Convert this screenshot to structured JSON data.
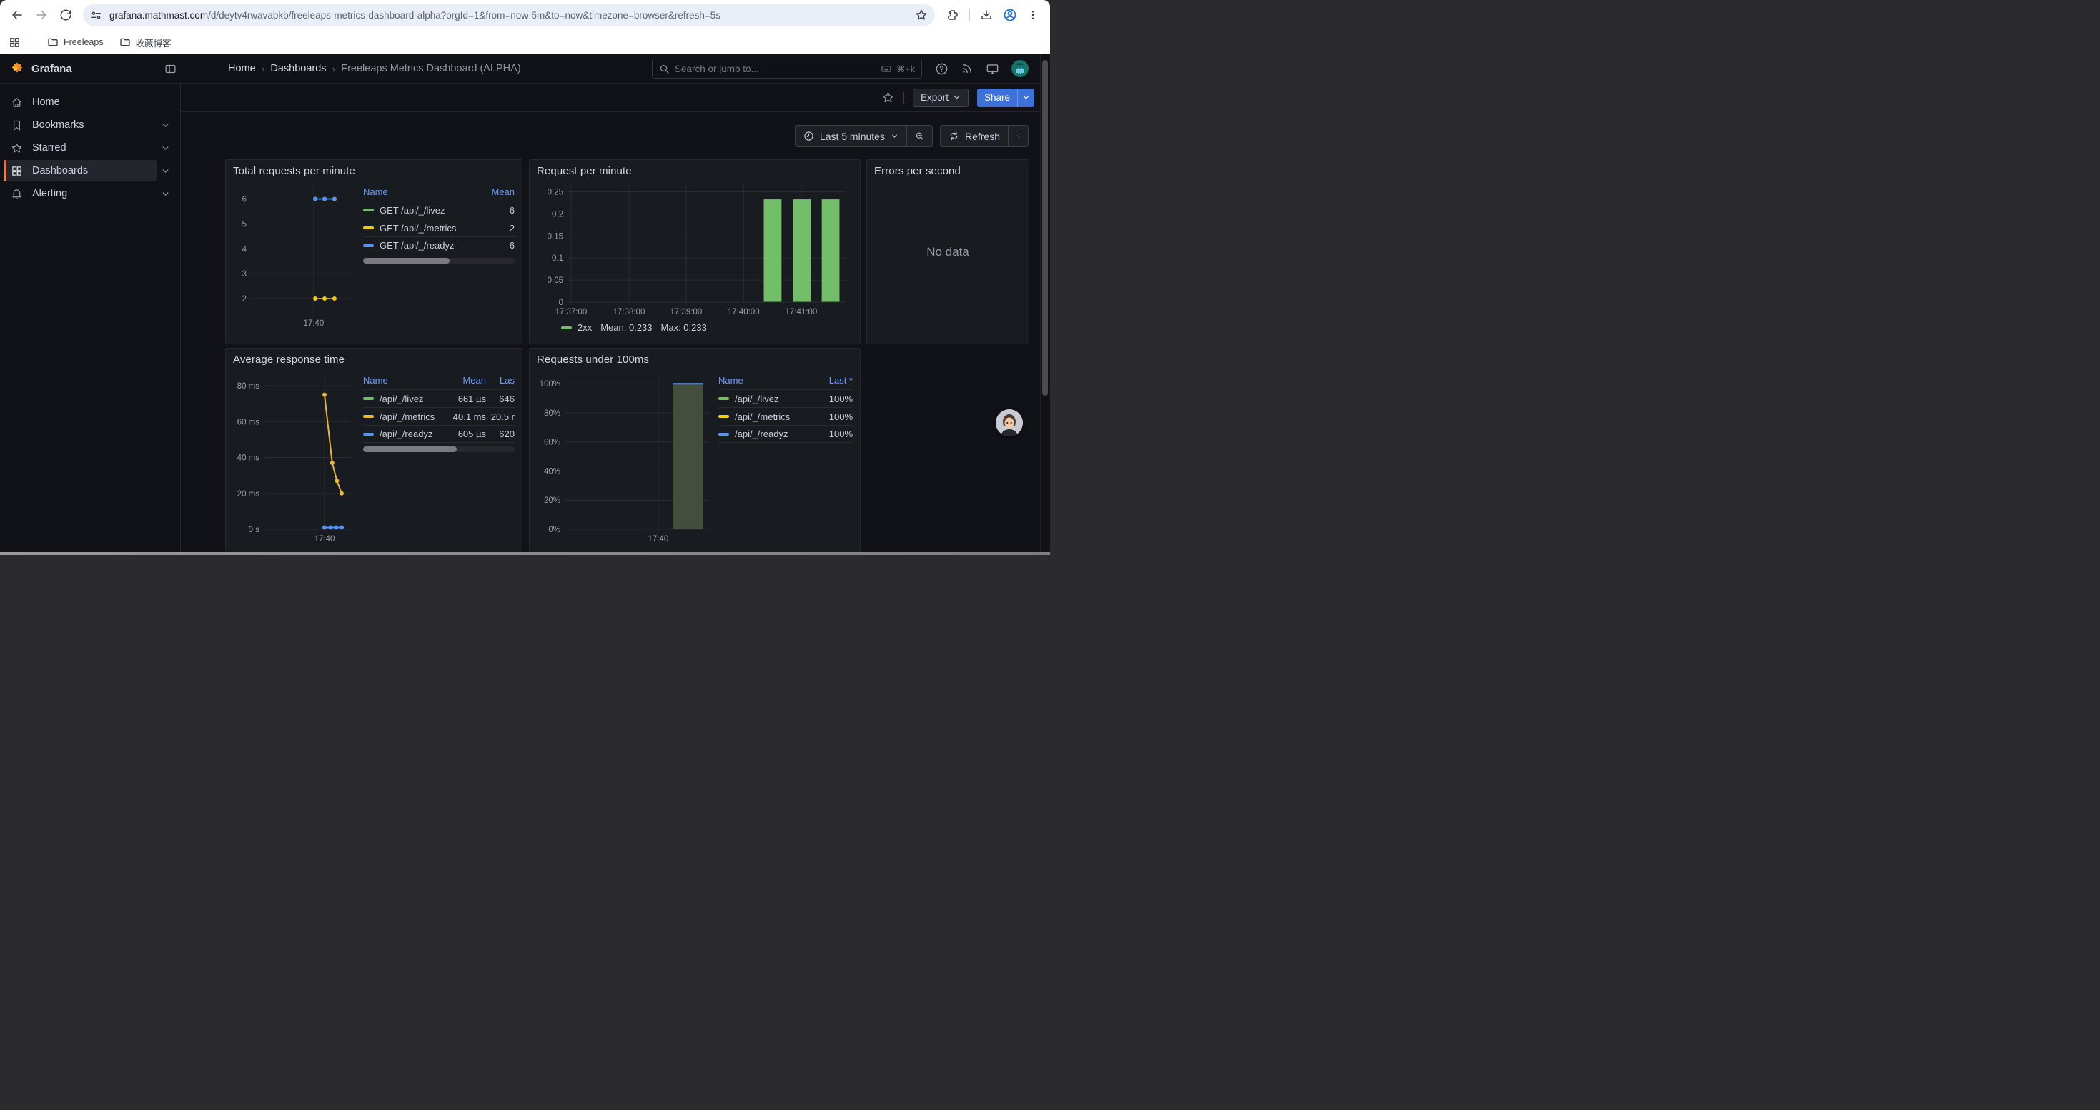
{
  "browser": {
    "url_domain": "grafana.mathmast.com",
    "url_path": "/d/deytv4rwavabkb/freeleaps-metrics-dashboard-alpha?orgId=1&from=now-5m&to=now&timezone=browser&refresh=5s",
    "bookmarks": [
      {
        "label": "Freeleaps"
      },
      {
        "label": "收藏博客"
      }
    ]
  },
  "header": {
    "brand": "Grafana",
    "breadcrumb": [
      "Home",
      "Dashboards",
      "Freeleaps Metrics Dashboard (ALPHA)"
    ],
    "search_placeholder": "Search or jump to...",
    "search_shortcut": "⌘+k"
  },
  "toolbar": {
    "export_label": "Export",
    "share_label": "Share"
  },
  "timebar": {
    "range_label": "Last 5 minutes",
    "refresh_label": "Refresh"
  },
  "sidebar": {
    "items": [
      {
        "label": "Home"
      },
      {
        "label": "Bookmarks"
      },
      {
        "label": "Starred"
      },
      {
        "label": "Dashboards"
      },
      {
        "label": "Alerting"
      }
    ]
  },
  "colors": {
    "green": "#73BF69",
    "yellow": "#F2CC0C",
    "gold": "#EAB839",
    "blue": "#5794F2",
    "link_blue": "#6E9FFF",
    "share_blue": "#3D71D9",
    "accent_orange": "#FF8833"
  },
  "panels": {
    "total_requests": {
      "title": "Total requests per minute",
      "legend": {
        "col_name": "Name",
        "col_mean": "Mean",
        "rows": [
          {
            "color": "#73BF69",
            "name": "GET /api/_/livez",
            "mean": "6"
          },
          {
            "color": "#F2CC0C",
            "name": "GET /api/_/metrics",
            "mean": "2"
          },
          {
            "color": "#5794F2",
            "name": "GET /api/_/readyz",
            "mean": "6"
          }
        ]
      }
    },
    "request_per_minute": {
      "title": "Request per minute",
      "legend": {
        "series": "2xx",
        "mean": "Mean: 0.233",
        "max": "Max: 0.233"
      }
    },
    "errors_per_second": {
      "title": "Errors per second",
      "no_data": "No data"
    },
    "avg_response": {
      "title": "Average response time",
      "legend": {
        "col_name": "Name",
        "col_mean": "Mean",
        "col_last": "Las",
        "rows": [
          {
            "color": "#73BF69",
            "name": "/api/_/livez",
            "mean": "661 µs",
            "last": "646"
          },
          {
            "color": "#EAB839",
            "name": "/api/_/metrics",
            "mean": "40.1 ms",
            "last": "20.5 r"
          },
          {
            "color": "#5794F2",
            "name": "/api/_/readyz",
            "mean": "605 µs",
            "last": "620"
          }
        ]
      }
    },
    "under_100ms": {
      "title": "Requests under 100ms",
      "legend": {
        "col_name": "Name",
        "col_last": "Last *",
        "rows": [
          {
            "color": "#73BF69",
            "name": "/api/_/livez",
            "last": "100%"
          },
          {
            "color": "#F2CC0C",
            "name": "/api/_/metrics",
            "last": "100%"
          },
          {
            "color": "#5794F2",
            "name": "/api/_/readyz",
            "last": "100%"
          }
        ]
      }
    }
  },
  "chart_data": {
    "total_requests": {
      "type": "line",
      "title": "Total requests per minute",
      "ylim": [
        1.4,
        6.5
      ],
      "xlabel": "",
      "ylabel": "",
      "yticks": [
        {
          "v": 2,
          "label": "2"
        },
        {
          "v": 3,
          "label": "3"
        },
        {
          "v": 4,
          "label": "4"
        },
        {
          "v": 5,
          "label": "5"
        },
        {
          "v": 6,
          "label": "6"
        }
      ],
      "xticks": [
        {
          "f": 0.63,
          "label": "17:40"
        }
      ],
      "margins": {
        "l": 26,
        "r": 8,
        "t": 10,
        "b": 26
      },
      "series": [
        {
          "name": "GET /api/_/livez",
          "color": "#73BF69",
          "width": 1.5,
          "dots": true,
          "mean": 6,
          "points": [
            [
              0.645,
              6
            ],
            [
              0.74,
              6
            ],
            [
              0.84,
              6
            ]
          ]
        },
        {
          "name": "GET /api/_/metrics",
          "color": "#F2CC0C",
          "width": 1.5,
          "dots": true,
          "mean": 2,
          "points": [
            [
              0.645,
              2
            ],
            [
              0.74,
              2
            ],
            [
              0.84,
              2
            ]
          ]
        },
        {
          "name": "GET /api/_/readyz",
          "color": "#5794F2",
          "width": 1.5,
          "dots": true,
          "mean": 6,
          "points": [
            [
              0.645,
              6
            ],
            [
              0.74,
              6
            ],
            [
              0.84,
              6
            ]
          ]
        }
      ]
    },
    "request_per_minute": {
      "type": "bar",
      "title": "Request per minute",
      "ylim": [
        0,
        0.2655
      ],
      "yticks": [
        {
          "v": 0,
          "label": "0"
        },
        {
          "v": 0.05,
          "label": "0.05"
        },
        {
          "v": 0.1,
          "label": "0.1"
        },
        {
          "v": 0.15,
          "label": "0.15"
        },
        {
          "v": 0.2,
          "label": "0.2"
        },
        {
          "v": 0.25,
          "label": "0.25"
        }
      ],
      "xticks": [
        {
          "f": 0.01,
          "label": "17:37:00"
        },
        {
          "f": 0.219,
          "label": "17:38:00"
        },
        {
          "f": 0.425,
          "label": "17:39:00"
        },
        {
          "f": 0.632,
          "label": "17:40:00"
        },
        {
          "f": 0.84,
          "label": "17:41:00"
        }
      ],
      "margins": {
        "l": 44,
        "r": 12,
        "t": 8,
        "b": 24
      },
      "barWidth": 0.064,
      "bars": [
        {
          "f": 0.737,
          "v": 0.233,
          "fill": "#73BF69"
        },
        {
          "f": 0.843,
          "v": 0.233,
          "fill": "#73BF69"
        },
        {
          "f": 0.946,
          "v": 0.233,
          "fill": "#73BF69"
        }
      ],
      "legend_series": "2xx",
      "mean": 0.233,
      "max": 0.233
    },
    "avg_response": {
      "type": "line",
      "title": "Average response time",
      "ylim": [
        0,
        86
      ],
      "yticks": [
        {
          "v": 0,
          "label": "0 s"
        },
        {
          "v": 20,
          "label": "20 ms"
        },
        {
          "v": 40,
          "label": "40 ms"
        },
        {
          "v": 60,
          "label": "60 ms"
        },
        {
          "v": 80,
          "label": "80 ms"
        }
      ],
      "xticks": [
        {
          "f": 0.7,
          "label": "17:40"
        }
      ],
      "margins": {
        "l": 44,
        "r": 8,
        "t": 10,
        "b": 26
      },
      "series": [
        {
          "name": "/api/_/livez",
          "color": "#73BF69",
          "width": 1.5,
          "dots": false,
          "points": [
            [
              0.7,
              1.0
            ],
            [
              0.77,
              1.0
            ],
            [
              0.835,
              1.0
            ],
            [
              0.9,
              1.0
            ]
          ]
        },
        {
          "name": "/api/_/metrics",
          "color": "#EAB839",
          "width": 2,
          "dots": true,
          "points": [
            [
              0.7,
              75
            ],
            [
              0.79,
              37
            ],
            [
              0.845,
              27
            ],
            [
              0.9,
              20
            ]
          ]
        },
        {
          "name": "/api/_/readyz",
          "color": "#5794F2",
          "width": 1.5,
          "dots": true,
          "points": [
            [
              0.7,
              1.0
            ],
            [
              0.77,
              1.0
            ],
            [
              0.835,
              1.0
            ],
            [
              0.9,
              1.0
            ]
          ]
        }
      ]
    },
    "under_100ms": {
      "type": "bar",
      "title": "Requests under 100ms",
      "ylim": [
        0,
        1.06
      ],
      "yticks": [
        {
          "v": 0,
          "label": "0%"
        },
        {
          "v": 0.2,
          "label": "20%"
        },
        {
          "v": 0.4,
          "label": "40%"
        },
        {
          "v": 0.6,
          "label": "60%"
        },
        {
          "v": 0.8,
          "label": "80%"
        },
        {
          "v": 1,
          "label": "100%"
        }
      ],
      "xticks": [
        {
          "f": 0.643,
          "label": "17:40"
        }
      ],
      "margins": {
        "l": 40,
        "r": 8,
        "t": 10,
        "b": 26
      },
      "barWidth": 0.213,
      "bars": [
        {
          "f": 0.849,
          "v": 1.0,
          "fill": "#454e3c",
          "top": "#5794F2"
        }
      ],
      "values_pct": {
        "/api/_/livez": 100,
        "/api/_/metrics": 100,
        "/api/_/readyz": 100
      }
    }
  }
}
